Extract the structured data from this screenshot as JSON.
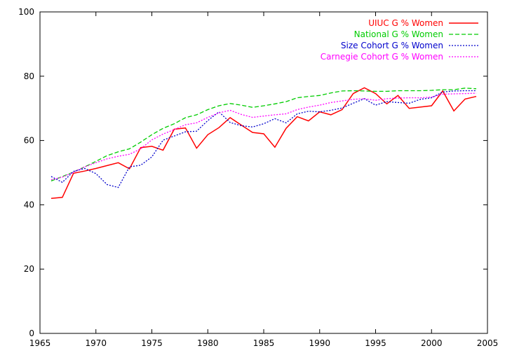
{
  "chart_data": {
    "type": "line",
    "title": "",
    "xlabel": "",
    "ylabel": "",
    "xlim": [
      1965,
      2005
    ],
    "ylim": [
      0,
      100
    ],
    "xticks": [
      1965,
      1970,
      1975,
      1980,
      1985,
      1990,
      1995,
      2000,
      2005
    ],
    "yticks": [
      0,
      20,
      40,
      60,
      80,
      100
    ],
    "grid": false,
    "legend": "top-right",
    "series": [
      {
        "name": "UIUC G % Women",
        "color": "#ff0000",
        "dash": "solid",
        "x": [
          1966,
          1967,
          1968,
          1969,
          1970,
          1971,
          1972,
          1973,
          1974,
          1975,
          1976,
          1977,
          1978,
          1979,
          1980,
          1981,
          1982,
          1983,
          1984,
          1985,
          1986,
          1987,
          1988,
          1989,
          1990,
          1991,
          1992,
          1993,
          1994,
          1995,
          1996,
          1997,
          1998,
          1999,
          2000,
          2001,
          2002,
          2003,
          2004
        ],
        "y": [
          42.0,
          42.3,
          49.8,
          50.5,
          51.3,
          52.2,
          53.1,
          51.2,
          57.8,
          58.2,
          57.0,
          63.5,
          63.9,
          57.6,
          61.8,
          64.0,
          67.1,
          64.8,
          62.5,
          62.1,
          57.9,
          63.8,
          67.4,
          66.1,
          68.9,
          68.0,
          69.6,
          74.6,
          76.4,
          74.6,
          71.4,
          74.0,
          70.0,
          70.4,
          70.8,
          75.4,
          69.2,
          72.9,
          73.7
        ]
      },
      {
        "name": "National G % Women",
        "color": "#00cc00",
        "dash": "dashed",
        "x": [
          1966,
          1967,
          1968,
          1969,
          1970,
          1971,
          1972,
          1973,
          1974,
          1975,
          1976,
          1977,
          1978,
          1979,
          1980,
          1981,
          1982,
          1983,
          1984,
          1985,
          1986,
          1987,
          1988,
          1989,
          1990,
          1991,
          1992,
          1993,
          1994,
          1995,
          1996,
          1997,
          1998,
          1999,
          2000,
          2001,
          2002,
          2003,
          2004
        ],
        "y": [
          47.4,
          48.8,
          50.2,
          51.8,
          53.5,
          55.3,
          56.5,
          57.4,
          59.5,
          61.8,
          63.8,
          65.2,
          67.1,
          68.0,
          69.6,
          70.8,
          71.5,
          71.0,
          70.3,
          70.8,
          71.4,
          72.1,
          73.3,
          73.7,
          74.0,
          74.8,
          75.4,
          75.5,
          75.4,
          75.3,
          75.3,
          75.5,
          75.5,
          75.5,
          75.6,
          75.8,
          75.8,
          76.3,
          76.1
        ]
      },
      {
        "name": "Size Cohort G % Women",
        "color": "#0000cc",
        "dash": "dotted",
        "x": [
          1966,
          1967,
          1968,
          1969,
          1970,
          1971,
          1972,
          1973,
          1974,
          1975,
          1976,
          1977,
          1978,
          1979,
          1980,
          1981,
          1982,
          1983,
          1984,
          1985,
          1986,
          1987,
          1988,
          1989,
          1990,
          1991,
          1992,
          1993,
          1994,
          1995,
          1996,
          1997,
          1998,
          1999,
          2000,
          2001,
          2002,
          2003,
          2004
        ],
        "y": [
          48.8,
          47.0,
          50.4,
          51.3,
          49.7,
          46.3,
          45.4,
          51.8,
          52.3,
          54.9,
          60.1,
          61.4,
          62.7,
          62.9,
          66.2,
          68.9,
          65.6,
          64.6,
          64.2,
          65.2,
          66.8,
          65.5,
          68.3,
          69.1,
          68.9,
          69.4,
          70.1,
          71.6,
          73.0,
          71.0,
          72.1,
          71.8,
          71.6,
          72.8,
          73.3,
          75.1,
          75.4,
          75.5,
          75.5
        ]
      },
      {
        "name": "Carnegie Cohort G % Women",
        "color": "#ff00ff",
        "dash": "dotted",
        "x": [
          1966,
          1967,
          1968,
          1969,
          1970,
          1971,
          1972,
          1973,
          1974,
          1975,
          1976,
          1977,
          1978,
          1979,
          1980,
          1981,
          1982,
          1983,
          1984,
          1985,
          1986,
          1987,
          1988,
          1989,
          1990,
          1991,
          1992,
          1993,
          1994,
          1995,
          1996,
          1997,
          1998,
          1999,
          2000,
          2001,
          2002,
          2003,
          2004
        ],
        "y": [
          47.8,
          48.6,
          50.1,
          51.8,
          53.1,
          54.3,
          55.1,
          55.7,
          57.4,
          60.2,
          62.0,
          63.4,
          64.9,
          65.5,
          67.2,
          68.6,
          69.4,
          68.1,
          67.2,
          67.6,
          68.0,
          68.3,
          69.6,
          70.4,
          71.0,
          71.8,
          72.3,
          72.8,
          73.0,
          72.5,
          73.0,
          73.2,
          73.3,
          73.3,
          73.5,
          74.4,
          74.5,
          74.6,
          74.7
        ]
      }
    ]
  }
}
